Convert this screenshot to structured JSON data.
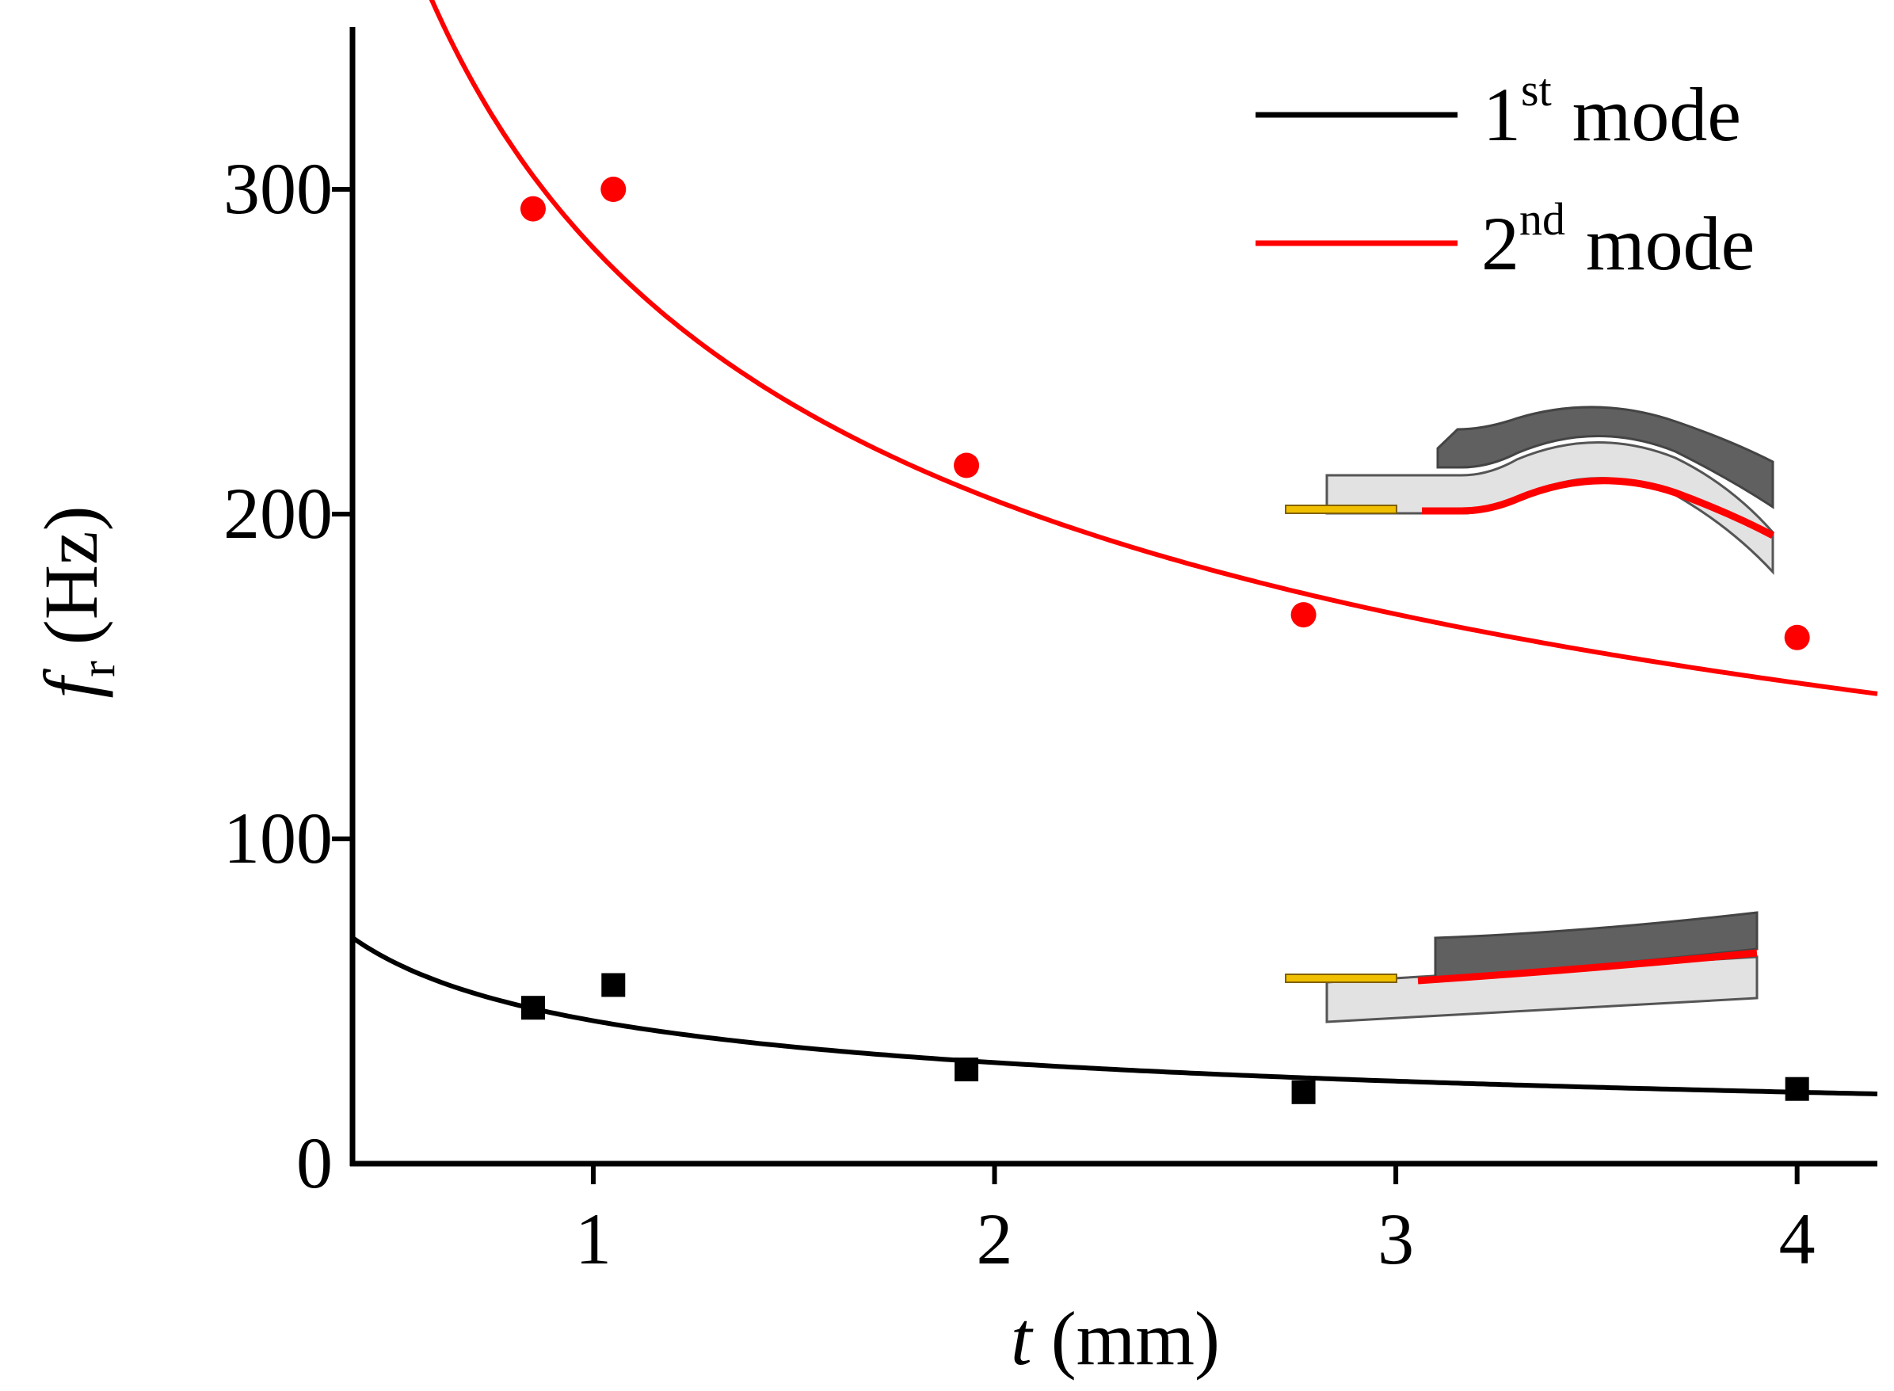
{
  "chart_data": {
    "type": "scatter",
    "xlabel": {
      "var": "t",
      "unit": "(mm)"
    },
    "ylabel": {
      "var": "f",
      "sub": "r",
      "unit": "(Hz)"
    },
    "xlim": [
      0.4,
      4.2
    ],
    "ylim": [
      0,
      350
    ],
    "xticks": [
      1,
      2,
      3,
      4
    ],
    "yticks": [
      0,
      100,
      200,
      300
    ],
    "grid": false,
    "legend_position": "top-right",
    "series": [
      {
        "name": "1st mode",
        "legend": {
          "num": "1",
          "sup": "st",
          "word": "mode"
        },
        "color": "#000000",
        "marker": "square",
        "points": [
          {
            "x": 0.85,
            "y": 48
          },
          {
            "x": 1.05,
            "y": 55
          },
          {
            "x": 1.93,
            "y": 29
          },
          {
            "x": 2.77,
            "y": 22
          },
          {
            "x": 4.0,
            "y": 23
          }
        ],
        "fit": {
          "form": "a*t^b",
          "a": 44,
          "b": -0.5,
          "x_from": 0.4,
          "x_to": 4.2
        }
      },
      {
        "name": "2nd mode",
        "legend": {
          "num": "2",
          "sup": "nd",
          "word": "mode"
        },
        "color": "#ff0000",
        "marker": "circle",
        "points": [
          {
            "x": 0.85,
            "y": 294
          },
          {
            "x": 1.05,
            "y": 300
          },
          {
            "x": 1.93,
            "y": 215
          },
          {
            "x": 2.77,
            "y": 169
          },
          {
            "x": 4.0,
            "y": 162
          }
        ],
        "fit": {
          "form": "a*t^b",
          "a": 282,
          "b": -0.465,
          "x_from": 0.58,
          "x_to": 4.2
        }
      }
    ],
    "insets": [
      {
        "name": "2nd-mode-shape-inset",
        "mode": "2nd"
      },
      {
        "name": "1st-mode-shape-inset",
        "mode": "1st"
      }
    ],
    "colors": {
      "inset_dark": "#606060",
      "inset_light": "#e2e2e2",
      "inset_layer": "#ff0000",
      "inset_electrode": "#f0c000"
    }
  }
}
